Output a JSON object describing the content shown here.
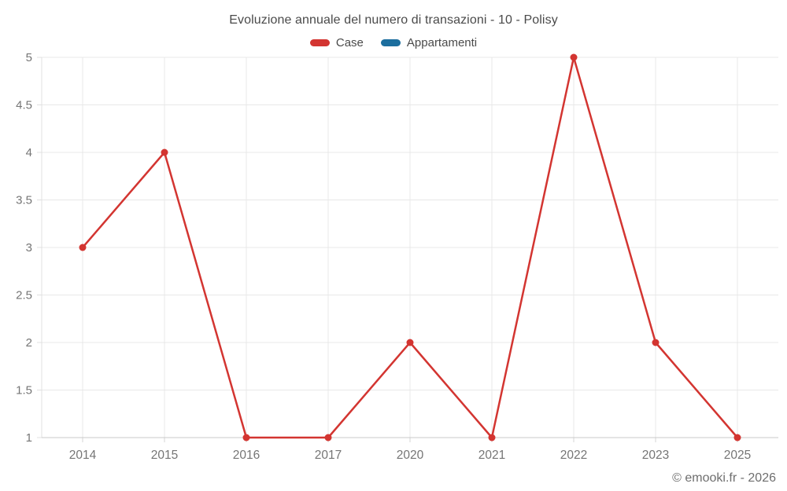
{
  "chart_data": {
    "type": "line",
    "title": "Evoluzione annuale del numero di transazioni - 10 - Polisy",
    "categories": [
      "2014",
      "2015",
      "2016",
      "2017",
      "2020",
      "2021",
      "2022",
      "2023",
      "2025"
    ],
    "series": [
      {
        "name": "Case",
        "color": "#d33531",
        "values": [
          3,
          4,
          1,
          1,
          2,
          1,
          5,
          2,
          1
        ]
      },
      {
        "name": "Appartamenti",
        "color": "#1c6e9e",
        "values": []
      }
    ],
    "xlabel": "",
    "ylabel": "",
    "ylim": [
      1,
      5
    ],
    "ytick_step": 0.5,
    "grid": true,
    "legend_position": "top",
    "watermark": "© emooki.fr - 2026",
    "colors": {
      "grid": "#e8e8e8",
      "y_axis": "#e0e0e0",
      "x_axis": "#c9c9c9",
      "tick": "#d6d6d6",
      "tick_label": "#757575",
      "title_text": "#4a4a4a",
      "watermark_text": "#6e6e6e",
      "background": "#ffffff"
    }
  }
}
